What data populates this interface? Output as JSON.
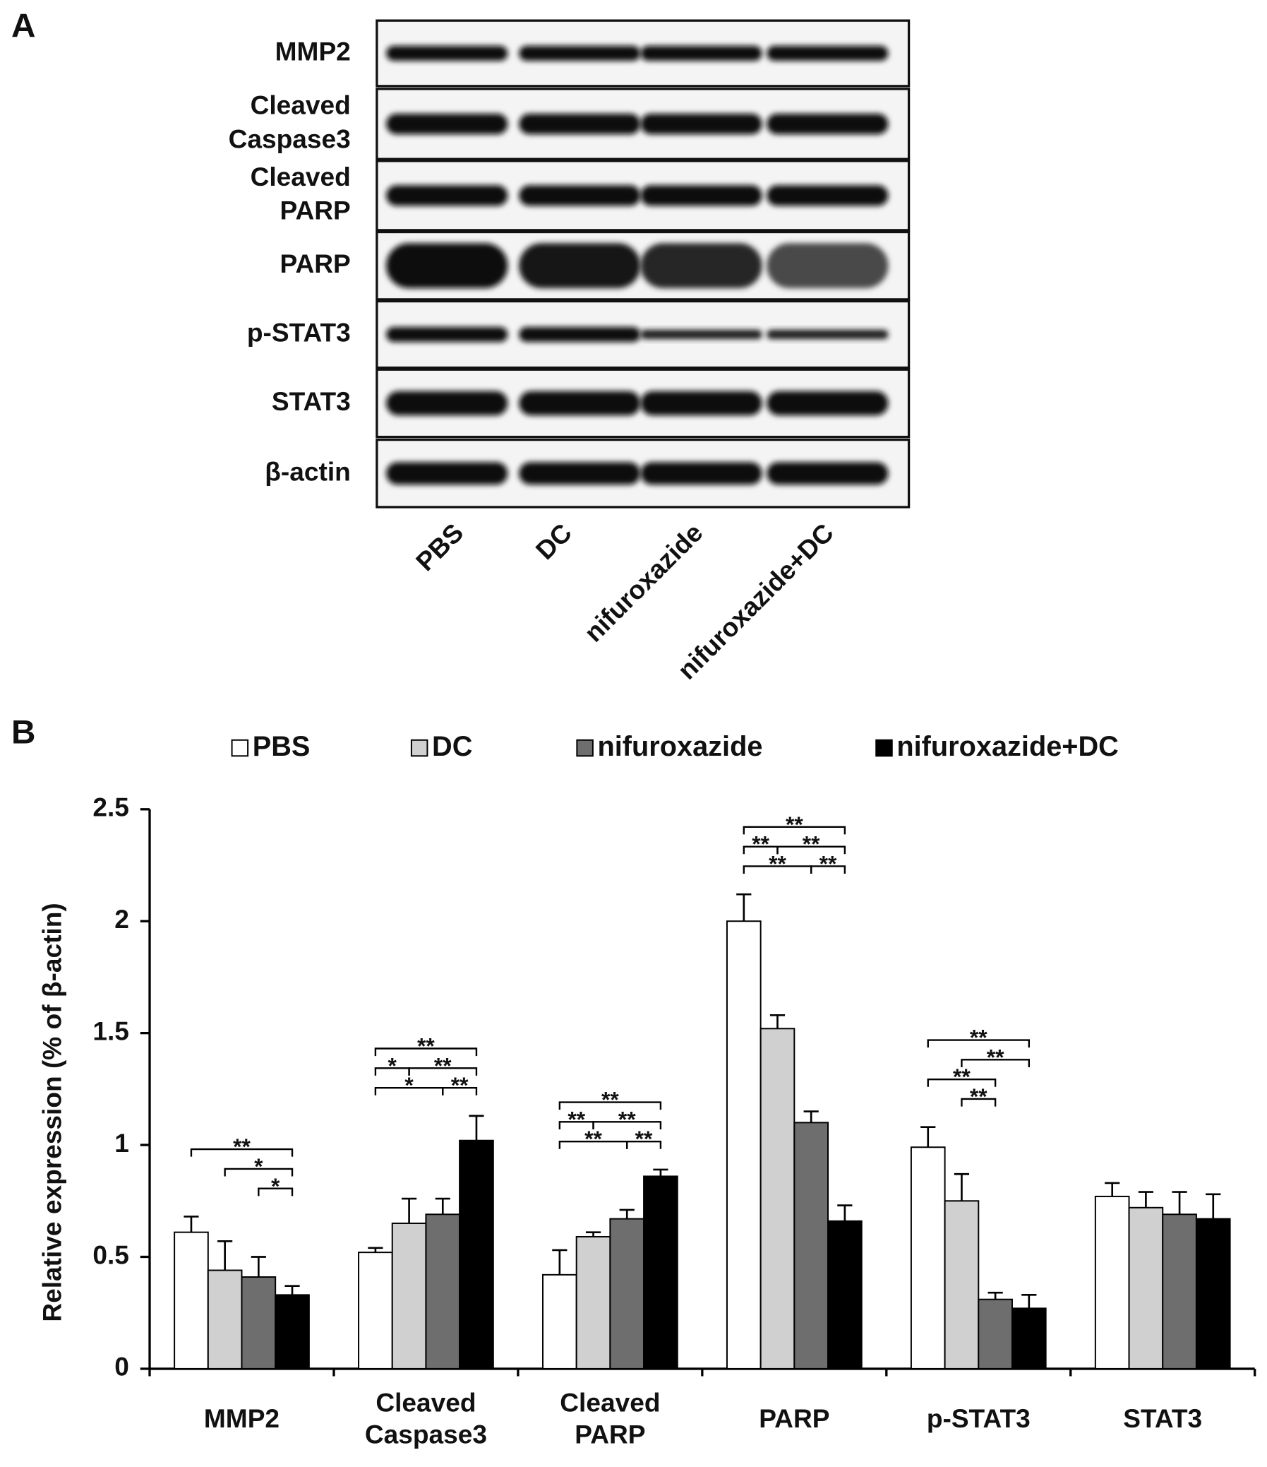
{
  "panel_a": {
    "label": "A",
    "rows": [
      "MMP2",
      "Cleaved Caspase3",
      "Cleaved PARP",
      "PARP",
      "p-STAT3",
      "STAT3",
      "β-actin"
    ],
    "lanes": [
      "PBS",
      "DC",
      "nifuroxazide",
      "nifuroxazide+DC"
    ]
  },
  "chart_data": {
    "type": "bar",
    "panel_label": "B",
    "y_label": "Relative expression (% of β-actin)",
    "categories": [
      "MMP2",
      "Cleaved Caspase3",
      "Cleaved PARP",
      "PARP",
      "p-STAT3",
      "STAT3"
    ],
    "series": [
      {
        "name": "PBS",
        "color": "#ffffff",
        "values": [
          0.61,
          0.52,
          0.42,
          2.0,
          0.99,
          0.77
        ],
        "errors": [
          0.07,
          0.02,
          0.11,
          0.12,
          0.09,
          0.06
        ]
      },
      {
        "name": "DC",
        "color": "#d0d0d0",
        "values": [
          0.44,
          0.65,
          0.59,
          1.52,
          0.75,
          0.72
        ],
        "errors": [
          0.13,
          0.11,
          0.02,
          0.06,
          0.12,
          0.07
        ]
      },
      {
        "name": "nifuroxazide",
        "color": "#6e6e6e",
        "values": [
          0.41,
          0.69,
          0.67,
          1.1,
          0.31,
          0.69
        ],
        "errors": [
          0.09,
          0.07,
          0.04,
          0.05,
          0.03,
          0.1
        ]
      },
      {
        "name": "nifuroxazide+DC",
        "color": "#000000",
        "values": [
          0.33,
          1.02,
          0.86,
          0.66,
          0.27,
          0.67
        ],
        "errors": [
          0.04,
          0.11,
          0.03,
          0.07,
          0.06,
          0.11
        ]
      }
    ],
    "ylim": [
      0,
      2.5
    ],
    "yticks": [
      0,
      0.5,
      1,
      1.5,
      2,
      2.5
    ],
    "significance": [
      {
        "category": "MMP2",
        "from": "nifuroxazide",
        "to": "nifuroxazide+DC",
        "label": "*"
      },
      {
        "category": "MMP2",
        "from": "DC",
        "to": "nifuroxazide+DC",
        "label": "*"
      },
      {
        "category": "MMP2",
        "from": "PBS",
        "to": "nifuroxazide+DC",
        "label": "**"
      },
      {
        "category": "Cleaved Caspase3",
        "from": "PBS",
        "to": "nifuroxazide",
        "label": "*"
      },
      {
        "category": "Cleaved Caspase3",
        "from": "nifuroxazide",
        "to": "nifuroxazide+DC",
        "label": "**"
      },
      {
        "category": "Cleaved Caspase3",
        "from": "PBS",
        "to": "DC",
        "label": "*"
      },
      {
        "category": "Cleaved Caspase3",
        "from": "DC",
        "to": "nifuroxazide+DC",
        "label": "**"
      },
      {
        "category": "Cleaved Caspase3",
        "from": "PBS",
        "to": "nifuroxazide+DC",
        "label": "**"
      },
      {
        "category": "Cleaved PARP",
        "from": "PBS",
        "to": "nifuroxazide",
        "label": "**"
      },
      {
        "category": "Cleaved PARP",
        "from": "nifuroxazide",
        "to": "nifuroxazide+DC",
        "label": "**"
      },
      {
        "category": "Cleaved PARP",
        "from": "PBS",
        "to": "DC",
        "label": "**"
      },
      {
        "category": "Cleaved PARP",
        "from": "DC",
        "to": "nifuroxazide+DC",
        "label": "**"
      },
      {
        "category": "Cleaved PARP",
        "from": "PBS",
        "to": "nifuroxazide+DC",
        "label": "**"
      },
      {
        "category": "PARP",
        "from": "PBS",
        "to": "nifuroxazide",
        "label": "**"
      },
      {
        "category": "PARP",
        "from": "nifuroxazide",
        "to": "nifuroxazide+DC",
        "label": "**"
      },
      {
        "category": "PARP",
        "from": "PBS",
        "to": "DC",
        "label": "**"
      },
      {
        "category": "PARP",
        "from": "DC",
        "to": "nifuroxazide+DC",
        "label": "**"
      },
      {
        "category": "PARP",
        "from": "PBS",
        "to": "nifuroxazide+DC",
        "label": "**"
      },
      {
        "category": "p-STAT3",
        "from": "DC",
        "to": "nifuroxazide",
        "label": "**"
      },
      {
        "category": "p-STAT3",
        "from": "PBS",
        "to": "nifuroxazide",
        "label": "**"
      },
      {
        "category": "p-STAT3",
        "from": "DC",
        "to": "nifuroxazide+DC",
        "label": "**"
      },
      {
        "category": "p-STAT3",
        "from": "PBS",
        "to": "nifuroxazide+DC",
        "label": "**"
      }
    ]
  }
}
